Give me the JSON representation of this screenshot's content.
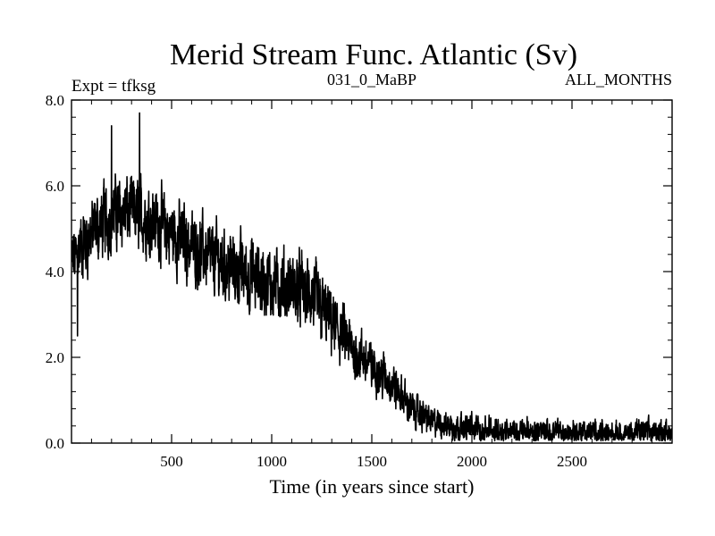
{
  "chart_data": {
    "type": "line",
    "title": "Merid Stream Func. Atlantic (Sv)",
    "left_label": "Expt = tfksg",
    "center_label": "031_0_MaBP",
    "right_label": "ALL_MONTHS",
    "xlabel": "Time (in years since start)",
    "ylabel": "",
    "xlim": [
      0,
      3000
    ],
    "ylim": [
      0,
      8
    ],
    "x_ticks": [
      500,
      1000,
      1500,
      2000,
      2500
    ],
    "x_minor_step": 100,
    "y_ticks": [
      0,
      2,
      4,
      6,
      8
    ],
    "y_tick_labels": [
      "0.0",
      "2.0",
      "4.0",
      "6.0",
      "8.0"
    ],
    "y_minor_step": 0.4,
    "series": [
      {
        "name": "Merid Stream Func. Atlantic",
        "trend_x": [
          0,
          50,
          100,
          150,
          200,
          250,
          300,
          350,
          400,
          500,
          600,
          700,
          800,
          900,
          1000,
          1100,
          1150,
          1200,
          1300,
          1400,
          1500,
          1600,
          1650,
          1700,
          1800,
          1900,
          2000,
          2100,
          2200,
          2400,
          2600,
          2800,
          3000
        ],
        "trend_y": [
          4.2,
          4.6,
          4.9,
          5.1,
          5.3,
          5.4,
          5.4,
          5.3,
          5.2,
          4.9,
          4.6,
          4.3,
          4.1,
          3.9,
          3.7,
          3.6,
          3.6,
          3.4,
          2.8,
          2.2,
          1.8,
          1.4,
          1.1,
          0.8,
          0.5,
          0.4,
          0.35,
          0.3,
          0.28,
          0.25,
          0.25,
          0.25,
          0.25
        ],
        "noise_amplitude": 0.55,
        "notable_peaks": [
          {
            "x": 340,
            "y": 7.7
          },
          {
            "x": 200,
            "y": 7.4
          },
          {
            "x": 30,
            "y": 2.5
          },
          {
            "x": 1620,
            "y": 0.8
          }
        ]
      }
    ]
  }
}
